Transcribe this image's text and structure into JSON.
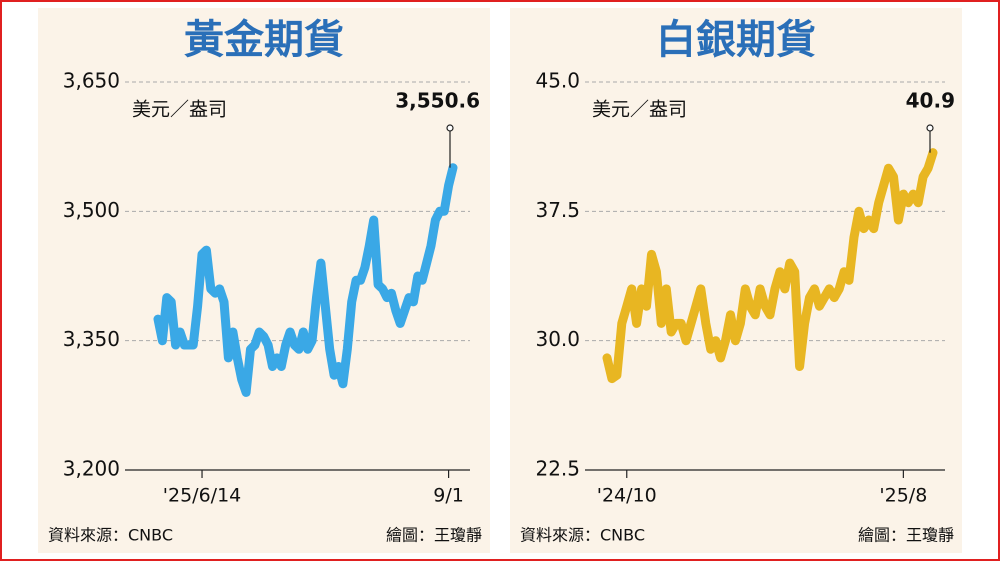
{
  "chart_data": [
    {
      "type": "line",
      "title": "黃金期貨",
      "unit": "美元／盎司",
      "source": "資料來源：CNBC",
      "credit": "繪圖：王瓊靜",
      "color": "#3aa8e6",
      "ylim": [
        3200,
        3650
      ],
      "yticks": [
        {
          "value": 3200,
          "label": "3,200"
        },
        {
          "value": 3350,
          "label": "3,350"
        },
        {
          "value": 3500,
          "label": "3,500"
        },
        {
          "value": 3650,
          "label": "3,650"
        }
      ],
      "grid": true,
      "categories": [
        null,
        null,
        null,
        null,
        null,
        null,
        null,
        null,
        null,
        null,
        "'25/6/14",
        null,
        null,
        null,
        null,
        null,
        null,
        null,
        null,
        null,
        null,
        null,
        null,
        null,
        null,
        null,
        null,
        null,
        null,
        null,
        null,
        null,
        null,
        null,
        null,
        null,
        null,
        null,
        null,
        null,
        null,
        null,
        null,
        null,
        null,
        null,
        null,
        null,
        null,
        null,
        null,
        null,
        null,
        null,
        null,
        null,
        null,
        null,
        null,
        null,
        null,
        null,
        null,
        null,
        null,
        null,
        "9/1",
        null
      ],
      "values": [
        3375,
        3350,
        3400,
        3395,
        3345,
        3360,
        3345,
        3345,
        3345,
        3390,
        3450,
        3455,
        3410,
        3405,
        3410,
        3395,
        3330,
        3360,
        3330,
        3305,
        3290,
        3340,
        3345,
        3360,
        3355,
        3345,
        3320,
        3330,
        3320,
        3345,
        3360,
        3345,
        3340,
        3360,
        3340,
        3350,
        3400,
        3440,
        3390,
        3340,
        3310,
        3320,
        3300,
        3340,
        3395,
        3420,
        3420,
        3435,
        3460,
        3490,
        3415,
        3410,
        3400,
        3405,
        3385,
        3370,
        3385,
        3400,
        3395,
        3425,
        3420,
        3440,
        3460,
        3490,
        3500,
        3500,
        3530,
        3550.6
      ],
      "value_labels": [
        null,
        null,
        null,
        null,
        null,
        null,
        null,
        null,
        null,
        null,
        null,
        null,
        null,
        null,
        null,
        null,
        null,
        null,
        null,
        null,
        null,
        null,
        null,
        null,
        null,
        null,
        null,
        null,
        null,
        null,
        null,
        null,
        null,
        null,
        null,
        null,
        null,
        null,
        null,
        null,
        null,
        null,
        null,
        null,
        null,
        null,
        null,
        null,
        null,
        null,
        null,
        null,
        null,
        null,
        null,
        null,
        null,
        null,
        null,
        null,
        null,
        null,
        null,
        null,
        null,
        null,
        null,
        "3,550.6"
      ]
    },
    {
      "type": "line",
      "title": "白銀期貨",
      "unit": "美元／盎司",
      "source": "資料來源：CNBC",
      "credit": "繪圖：王瓊靜",
      "color": "#e8b622",
      "ylim": [
        22.5,
        45
      ],
      "yticks": [
        22.5,
        {
          "value": 30,
          "label": "30.0"
        },
        37.5,
        {
          "value": 45,
          "label": "45.0"
        }
      ],
      "grid": true,
      "categories": [
        null,
        null,
        null,
        null,
        "'24/10",
        null,
        null,
        null,
        null,
        null,
        null,
        null,
        null,
        null,
        null,
        null,
        null,
        null,
        null,
        null,
        null,
        null,
        null,
        null,
        null,
        null,
        null,
        null,
        null,
        null,
        null,
        null,
        null,
        null,
        null,
        null,
        null,
        null,
        null,
        null,
        null,
        null,
        null,
        null,
        null,
        null,
        null,
        null,
        null,
        null,
        null,
        null,
        null,
        null,
        null,
        null,
        null,
        null,
        null,
        null,
        "'25/8",
        null,
        null,
        null,
        null,
        null,
        null
      ],
      "values": [
        29,
        27.8,
        28,
        31,
        32,
        33,
        31,
        33,
        32,
        35,
        34,
        31,
        33,
        30.5,
        31,
        31,
        30,
        31,
        32,
        33,
        31,
        29.5,
        30,
        29,
        30,
        31.5,
        30,
        31,
        33,
        32,
        31.5,
        33,
        32,
        31.5,
        33,
        34,
        33,
        34.5,
        34,
        28.5,
        31,
        32.5,
        33,
        32,
        32.5,
        33,
        32.5,
        33,
        34,
        33.5,
        36,
        37.5,
        36.5,
        37,
        36.5,
        38,
        39,
        40,
        39.5,
        37,
        38.5,
        38,
        38.5,
        38,
        39.5,
        40,
        40.9
      ],
      "value_labels": [
        null,
        null,
        null,
        null,
        null,
        null,
        null,
        null,
        null,
        null,
        null,
        null,
        null,
        null,
        null,
        null,
        null,
        null,
        null,
        null,
        null,
        null,
        null,
        null,
        null,
        null,
        null,
        null,
        null,
        null,
        null,
        null,
        null,
        null,
        null,
        null,
        null,
        null,
        null,
        null,
        null,
        null,
        null,
        null,
        null,
        null,
        null,
        null,
        null,
        null,
        null,
        null,
        null,
        null,
        null,
        null,
        null,
        null,
        null,
        null,
        null,
        null,
        null,
        null,
        null,
        null,
        "40.9"
      ]
    }
  ]
}
